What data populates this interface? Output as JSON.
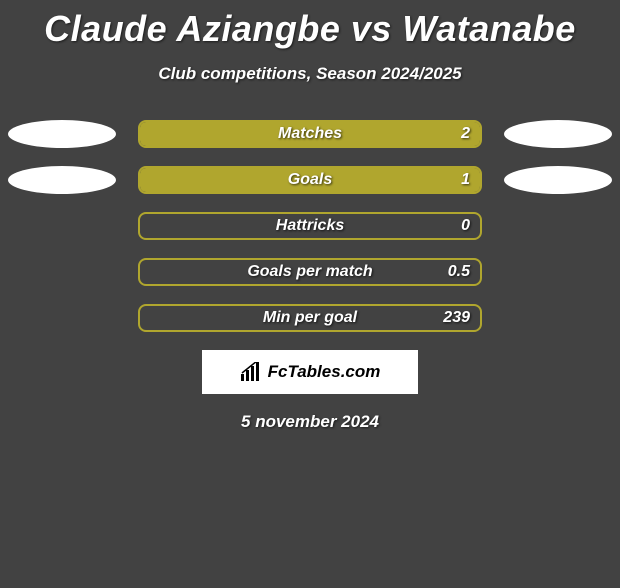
{
  "title": "Claude Aziangbe vs Watanabe",
  "subtitle": "Club competitions, Season 2024/2025",
  "date_text": "5 november 2024",
  "logo_text": "FcTables.com",
  "colors": {
    "background": "#424242",
    "text": "#ffffff",
    "bar_fill": "#b0a62e",
    "bar_border": "#b0a62e",
    "blob": "#ffffff",
    "logo_bg": "#ffffff",
    "logo_text": "#000000"
  },
  "stats": [
    {
      "label": "Matches",
      "value": "2",
      "fill_pct": 100,
      "left_blob": true,
      "right_blob": true
    },
    {
      "label": "Goals",
      "value": "1",
      "fill_pct": 100,
      "left_blob": true,
      "right_blob": true
    },
    {
      "label": "Hattricks",
      "value": "0",
      "fill_pct": 0,
      "left_blob": false,
      "right_blob": false
    },
    {
      "label": "Goals per match",
      "value": "0.5",
      "fill_pct": 0,
      "left_blob": false,
      "right_blob": false
    },
    {
      "label": "Min per goal",
      "value": "239",
      "fill_pct": 0,
      "left_blob": false,
      "right_blob": false
    }
  ]
}
